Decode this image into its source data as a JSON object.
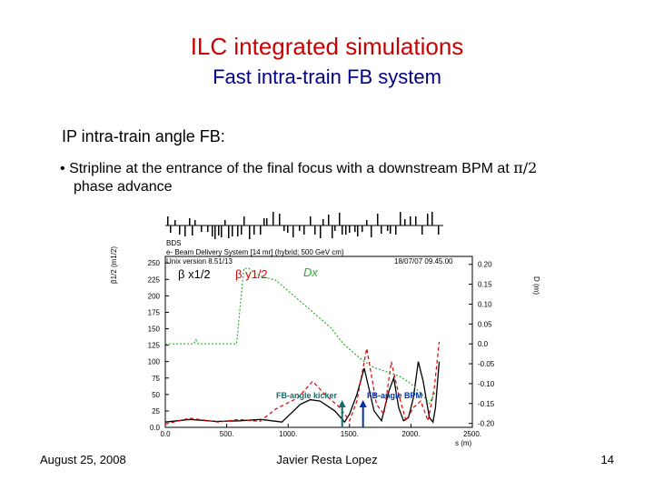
{
  "slide": {
    "title": "ILC integrated simulations",
    "subtitle": "Fast intra-train FB system",
    "section_heading": "IP intra-train angle FB:",
    "bullet_text": "Stripline at the entrance of the final focus with a downstream BPM at ",
    "bullet_pi": "π/2",
    "bullet_cont": "phase advance"
  },
  "figure": {
    "header_line1": "BDS",
    "header_line2": "e- Beam Delivery System [14 mr] (hybrid; 500 GeV cm)",
    "header_line3": "Unix version 8.51/13",
    "header_date": "18/07/07  09.45.00",
    "ylabel_left": "β1/2 (m1/2)",
    "ylabel_right": "D (m)",
    "xlabel": "s (m)",
    "legend_beta_x": "β x1/2",
    "legend_beta_y": "β y1/2",
    "legend_dx": "Dx",
    "annotation_kicker": "FB-angle kicker",
    "annotation_bpm": "FB-angle BPM"
  },
  "chart_data": {
    "type": "line",
    "x_ticks": [
      "0.0",
      "500.",
      "1000.",
      "1500.",
      "2000.",
      "2500."
    ],
    "y_left_ticks": [
      "0.0",
      "25",
      "50",
      "75",
      "100",
      "125",
      "150",
      "175",
      "200",
      "225",
      "250"
    ],
    "y_right_ticks": [
      "-0.20",
      "-0.15",
      "-0.10",
      "-0.05",
      "0.0",
      "0.05",
      "0.10",
      "0.15",
      "0.20"
    ],
    "xlim": [
      0,
      2500
    ],
    "ylim_left": [
      0,
      260
    ],
    "ylim_right": [
      -0.21,
      0.22
    ],
    "series": [
      {
        "name": "β x1/2",
        "color": "#000000",
        "axis": "left",
        "x": [
          0,
          200,
          420,
          600,
          780,
          950,
          1100,
          1180,
          1260,
          1380,
          1460,
          1500,
          1560,
          1620,
          1700,
          1760,
          1820,
          1860,
          1900,
          1940,
          1980,
          2020,
          2060,
          2100,
          2150,
          2180,
          2200,
          2230
        ],
        "y": [
          8,
          12,
          9,
          10,
          12,
          8,
          35,
          42,
          40,
          25,
          8,
          20,
          50,
          90,
          25,
          10,
          55,
          75,
          30,
          10,
          15,
          45,
          100,
          70,
          15,
          8,
          30,
          100
        ]
      },
      {
        "name": "β y1/2",
        "color": "#dd0000",
        "axis": "left",
        "x": [
          0,
          200,
          430,
          600,
          770,
          900,
          1080,
          1200,
          1300,
          1420,
          1500,
          1560,
          1640,
          1720,
          1780,
          1840,
          1900,
          1960,
          2020,
          2080,
          2140,
          2190,
          2230
        ],
        "y": [
          5,
          14,
          8,
          12,
          9,
          28,
          45,
          70,
          50,
          30,
          10,
          40,
          120,
          35,
          20,
          100,
          50,
          10,
          30,
          40,
          10,
          60,
          130
        ]
      },
      {
        "name": "Dx",
        "color": "#33aa33",
        "axis": "right",
        "x": [
          0,
          230,
          250,
          270,
          400,
          580,
          640,
          680,
          720,
          780,
          900,
          1050,
          1200,
          1350,
          1450,
          1600,
          1700,
          1800,
          1900,
          2000,
          2100,
          2150,
          2200
        ],
        "y": [
          0.0,
          0.0,
          0.01,
          0.0,
          0.0,
          0.0,
          0.19,
          0.19,
          0.18,
          0.17,
          0.16,
          0.12,
          0.08,
          0.04,
          0.0,
          -0.04,
          -0.06,
          -0.07,
          -0.08,
          -0.1,
          -0.13,
          -0.15,
          -0.12
        ]
      }
    ],
    "markers": [
      {
        "name": "FB-angle kicker",
        "x": 1440,
        "color": "#1a6a6a"
      },
      {
        "name": "FB-angle BPM",
        "x": 1610,
        "color": "#0033aa"
      }
    ]
  },
  "footer": {
    "date": "August 25, 2008",
    "author": "Javier Resta Lopez",
    "page": "14"
  }
}
